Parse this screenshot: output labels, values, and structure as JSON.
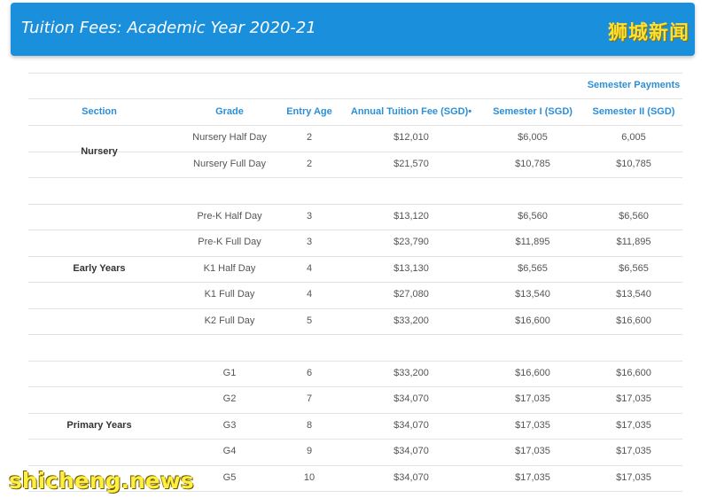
{
  "banner": {
    "title": "Tuition Fees: Academic Year 2020-21",
    "watermark": "狮城新闻"
  },
  "table": {
    "group_header": "Semester Payments",
    "columns": [
      "Section",
      "Grade",
      "Entry Age",
      "Annual Tuition Fee (SGD)•",
      "Semester I (SGD)",
      "Semester II (SGD)"
    ],
    "sections": [
      {
        "name": "Nursery",
        "rows": [
          {
            "grade": "Nursery Half Day",
            "age": "2",
            "annual": "$12,010",
            "sem1": "$6,005",
            "sem2": "6,005"
          },
          {
            "grade": "Nursery Full Day",
            "age": "2",
            "annual": "$21,570",
            "sem1": "$10,785",
            "sem2": "$10,785"
          }
        ]
      },
      {
        "name": "Early Years",
        "rows": [
          {
            "grade": "Pre-K Half Day",
            "age": "3",
            "annual": "$13,120",
            "sem1": "$6,560",
            "sem2": "$6,560"
          },
          {
            "grade": "Pre-K Full Day",
            "age": "3",
            "annual": "$23,790",
            "sem1": "$11,895",
            "sem2": "$11,895"
          },
          {
            "grade": "K1 Half Day",
            "age": "4",
            "annual": "$13,130",
            "sem1": "$6,565",
            "sem2": "$6,565"
          },
          {
            "grade": "K1 Full Day",
            "age": "4",
            "annual": "$27,080",
            "sem1": "$13,540",
            "sem2": "$13,540"
          },
          {
            "grade": "K2 Full Day",
            "age": "5",
            "annual": "$33,200",
            "sem1": "$16,600",
            "sem2": "$16,600"
          }
        ]
      },
      {
        "name": "Primary Years",
        "rows": [
          {
            "grade": "G1",
            "age": "6",
            "annual": "$33,200",
            "sem1": "$16,600",
            "sem2": "$16,600"
          },
          {
            "grade": "G2",
            "age": "7",
            "annual": "$34,070",
            "sem1": "$17,035",
            "sem2": "$17,035"
          },
          {
            "grade": "G3",
            "age": "8",
            "annual": "$34,070",
            "sem1": "$17,035",
            "sem2": "$17,035"
          },
          {
            "grade": "G4",
            "age": "9",
            "annual": "$34,070",
            "sem1": "$17,035",
            "sem2": "$17,035"
          },
          {
            "grade": "G5",
            "age": "10",
            "annual": "$34,070",
            "sem1": "$17,035",
            "sem2": "$17,035"
          }
        ]
      }
    ]
  },
  "footer_watermark": "shicheng.news"
}
